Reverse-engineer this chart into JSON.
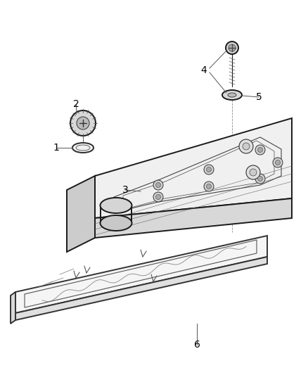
{
  "background_color": "#ffffff",
  "line_color": "#1a1a1a",
  "label_color": "#000000",
  "figsize": [
    4.38,
    5.33
  ],
  "dpi": 100,
  "label_fontsize": 10,
  "lw_main": 1.4,
  "lw_thin": 0.8,
  "lw_detail": 0.5,
  "cover_color": "#f0f0f0",
  "cover_side_color": "#d8d8d8",
  "gasket_color": "#f5f5f5",
  "detail_color": "#c8c8c8"
}
